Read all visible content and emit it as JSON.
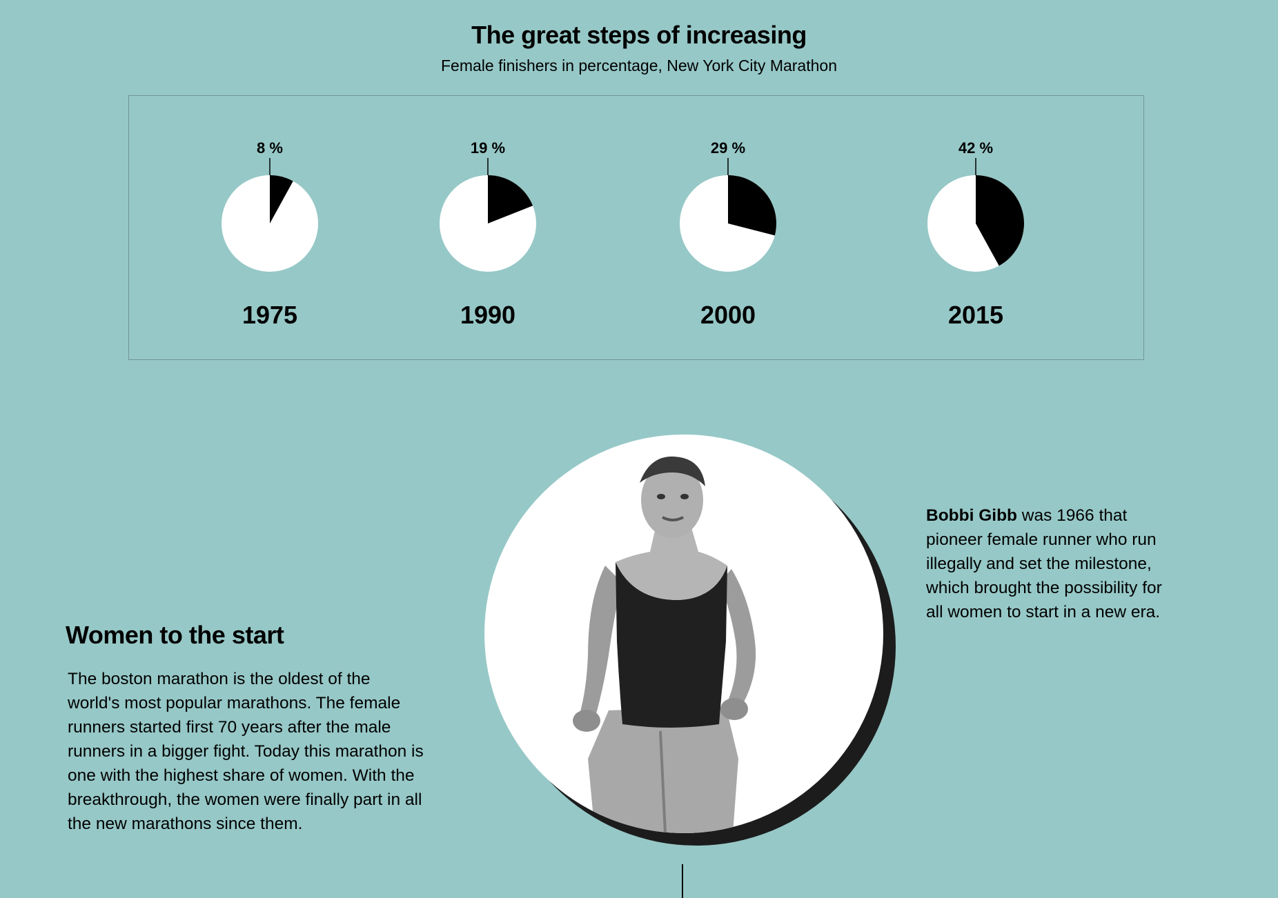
{
  "chart_data": {
    "type": "pie",
    "title": "The great steps of increasing",
    "subtitle": "Female finishers in percentage, New York City Marathon",
    "unit": "%",
    "categories": [
      "1975",
      "1990",
      "2000",
      "2015"
    ],
    "values": [
      8,
      19,
      29,
      42
    ],
    "labels": [
      "8 %",
      "19 %",
      "29 %",
      "42 %"
    ],
    "colors": {
      "share": "#000000",
      "rest": "#ffffff",
      "background": "#96c8c7"
    }
  },
  "section": {
    "heading": "Women to the start",
    "body": "The boston marathon is the oldest of the world's most popular marathons. The female runners started first 70 years after the male runners in a bigger fight. Today this marathon is one with the highest share of women.  With the breakthrough, the women were finally part in all the new marathons since them."
  },
  "caption": {
    "name": "Bobbi Gibb",
    "text": " was 1966 that pioneer female runner who run illegally and set the milestone, which brought the possibility for all women to start in a new era."
  },
  "photo": {
    "icon": "runner-portrait-icon"
  }
}
